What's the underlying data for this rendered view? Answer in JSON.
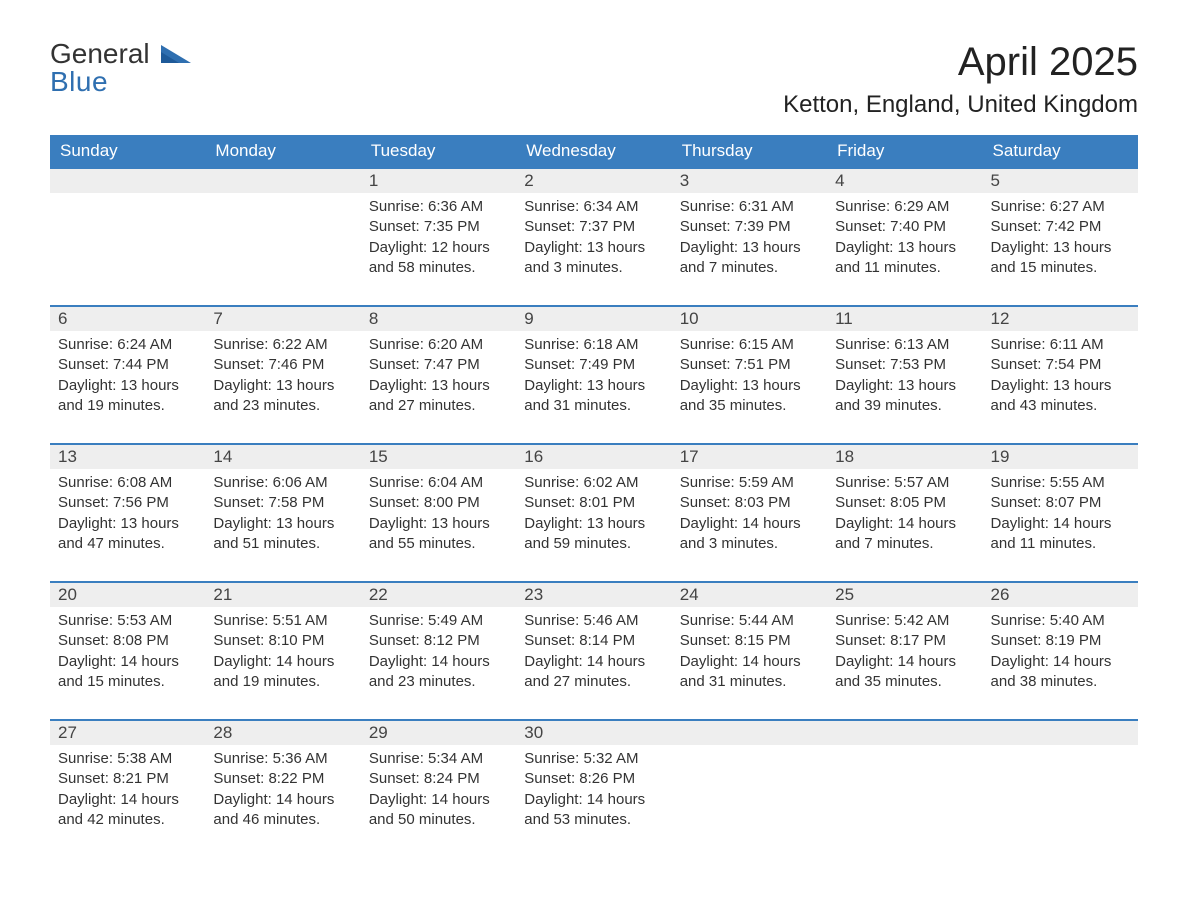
{
  "logo": {
    "text_general": "General",
    "text_blue": "Blue"
  },
  "title": "April 2025",
  "location": "Ketton, England, United Kingdom",
  "colors": {
    "header_bg": "#3a7ebf",
    "header_text": "#ffffff",
    "daynum_bg": "#eeeeee",
    "row_border": "#3a7ebf",
    "logo_blue": "#2f6fb0",
    "body_text": "#333333",
    "page_bg": "#ffffff"
  },
  "layout": {
    "columns": 7,
    "rows": 5,
    "font_family": "Segoe UI, Arial, Helvetica, sans-serif",
    "title_fontsize_pt": 30,
    "location_fontsize_pt": 18,
    "header_fontsize_pt": 13,
    "body_fontsize_pt": 11
  },
  "day_headers": [
    "Sunday",
    "Monday",
    "Tuesday",
    "Wednesday",
    "Thursday",
    "Friday",
    "Saturday"
  ],
  "weeks": [
    [
      {
        "day": "",
        "sunrise": "",
        "sunset": "",
        "daylight": ""
      },
      {
        "day": "",
        "sunrise": "",
        "sunset": "",
        "daylight": ""
      },
      {
        "day": "1",
        "sunrise": "Sunrise: 6:36 AM",
        "sunset": "Sunset: 7:35 PM",
        "daylight": "Daylight: 12 hours and 58 minutes."
      },
      {
        "day": "2",
        "sunrise": "Sunrise: 6:34 AM",
        "sunset": "Sunset: 7:37 PM",
        "daylight": "Daylight: 13 hours and 3 minutes."
      },
      {
        "day": "3",
        "sunrise": "Sunrise: 6:31 AM",
        "sunset": "Sunset: 7:39 PM",
        "daylight": "Daylight: 13 hours and 7 minutes."
      },
      {
        "day": "4",
        "sunrise": "Sunrise: 6:29 AM",
        "sunset": "Sunset: 7:40 PM",
        "daylight": "Daylight: 13 hours and 11 minutes."
      },
      {
        "day": "5",
        "sunrise": "Sunrise: 6:27 AM",
        "sunset": "Sunset: 7:42 PM",
        "daylight": "Daylight: 13 hours and 15 minutes."
      }
    ],
    [
      {
        "day": "6",
        "sunrise": "Sunrise: 6:24 AM",
        "sunset": "Sunset: 7:44 PM",
        "daylight": "Daylight: 13 hours and 19 minutes."
      },
      {
        "day": "7",
        "sunrise": "Sunrise: 6:22 AM",
        "sunset": "Sunset: 7:46 PM",
        "daylight": "Daylight: 13 hours and 23 minutes."
      },
      {
        "day": "8",
        "sunrise": "Sunrise: 6:20 AM",
        "sunset": "Sunset: 7:47 PM",
        "daylight": "Daylight: 13 hours and 27 minutes."
      },
      {
        "day": "9",
        "sunrise": "Sunrise: 6:18 AM",
        "sunset": "Sunset: 7:49 PM",
        "daylight": "Daylight: 13 hours and 31 minutes."
      },
      {
        "day": "10",
        "sunrise": "Sunrise: 6:15 AM",
        "sunset": "Sunset: 7:51 PM",
        "daylight": "Daylight: 13 hours and 35 minutes."
      },
      {
        "day": "11",
        "sunrise": "Sunrise: 6:13 AM",
        "sunset": "Sunset: 7:53 PM",
        "daylight": "Daylight: 13 hours and 39 minutes."
      },
      {
        "day": "12",
        "sunrise": "Sunrise: 6:11 AM",
        "sunset": "Sunset: 7:54 PM",
        "daylight": "Daylight: 13 hours and 43 minutes."
      }
    ],
    [
      {
        "day": "13",
        "sunrise": "Sunrise: 6:08 AM",
        "sunset": "Sunset: 7:56 PM",
        "daylight": "Daylight: 13 hours and 47 minutes."
      },
      {
        "day": "14",
        "sunrise": "Sunrise: 6:06 AM",
        "sunset": "Sunset: 7:58 PM",
        "daylight": "Daylight: 13 hours and 51 minutes."
      },
      {
        "day": "15",
        "sunrise": "Sunrise: 6:04 AM",
        "sunset": "Sunset: 8:00 PM",
        "daylight": "Daylight: 13 hours and 55 minutes."
      },
      {
        "day": "16",
        "sunrise": "Sunrise: 6:02 AM",
        "sunset": "Sunset: 8:01 PM",
        "daylight": "Daylight: 13 hours and 59 minutes."
      },
      {
        "day": "17",
        "sunrise": "Sunrise: 5:59 AM",
        "sunset": "Sunset: 8:03 PM",
        "daylight": "Daylight: 14 hours and 3 minutes."
      },
      {
        "day": "18",
        "sunrise": "Sunrise: 5:57 AM",
        "sunset": "Sunset: 8:05 PM",
        "daylight": "Daylight: 14 hours and 7 minutes."
      },
      {
        "day": "19",
        "sunrise": "Sunrise: 5:55 AM",
        "sunset": "Sunset: 8:07 PM",
        "daylight": "Daylight: 14 hours and 11 minutes."
      }
    ],
    [
      {
        "day": "20",
        "sunrise": "Sunrise: 5:53 AM",
        "sunset": "Sunset: 8:08 PM",
        "daylight": "Daylight: 14 hours and 15 minutes."
      },
      {
        "day": "21",
        "sunrise": "Sunrise: 5:51 AM",
        "sunset": "Sunset: 8:10 PM",
        "daylight": "Daylight: 14 hours and 19 minutes."
      },
      {
        "day": "22",
        "sunrise": "Sunrise: 5:49 AM",
        "sunset": "Sunset: 8:12 PM",
        "daylight": "Daylight: 14 hours and 23 minutes."
      },
      {
        "day": "23",
        "sunrise": "Sunrise: 5:46 AM",
        "sunset": "Sunset: 8:14 PM",
        "daylight": "Daylight: 14 hours and 27 minutes."
      },
      {
        "day": "24",
        "sunrise": "Sunrise: 5:44 AM",
        "sunset": "Sunset: 8:15 PM",
        "daylight": "Daylight: 14 hours and 31 minutes."
      },
      {
        "day": "25",
        "sunrise": "Sunrise: 5:42 AM",
        "sunset": "Sunset: 8:17 PM",
        "daylight": "Daylight: 14 hours and 35 minutes."
      },
      {
        "day": "26",
        "sunrise": "Sunrise: 5:40 AM",
        "sunset": "Sunset: 8:19 PM",
        "daylight": "Daylight: 14 hours and 38 minutes."
      }
    ],
    [
      {
        "day": "27",
        "sunrise": "Sunrise: 5:38 AM",
        "sunset": "Sunset: 8:21 PM",
        "daylight": "Daylight: 14 hours and 42 minutes."
      },
      {
        "day": "28",
        "sunrise": "Sunrise: 5:36 AM",
        "sunset": "Sunset: 8:22 PM",
        "daylight": "Daylight: 14 hours and 46 minutes."
      },
      {
        "day": "29",
        "sunrise": "Sunrise: 5:34 AM",
        "sunset": "Sunset: 8:24 PM",
        "daylight": "Daylight: 14 hours and 50 minutes."
      },
      {
        "day": "30",
        "sunrise": "Sunrise: 5:32 AM",
        "sunset": "Sunset: 8:26 PM",
        "daylight": "Daylight: 14 hours and 53 minutes."
      },
      {
        "day": "",
        "sunrise": "",
        "sunset": "",
        "daylight": ""
      },
      {
        "day": "",
        "sunrise": "",
        "sunset": "",
        "daylight": ""
      },
      {
        "day": "",
        "sunrise": "",
        "sunset": "",
        "daylight": ""
      }
    ]
  ]
}
